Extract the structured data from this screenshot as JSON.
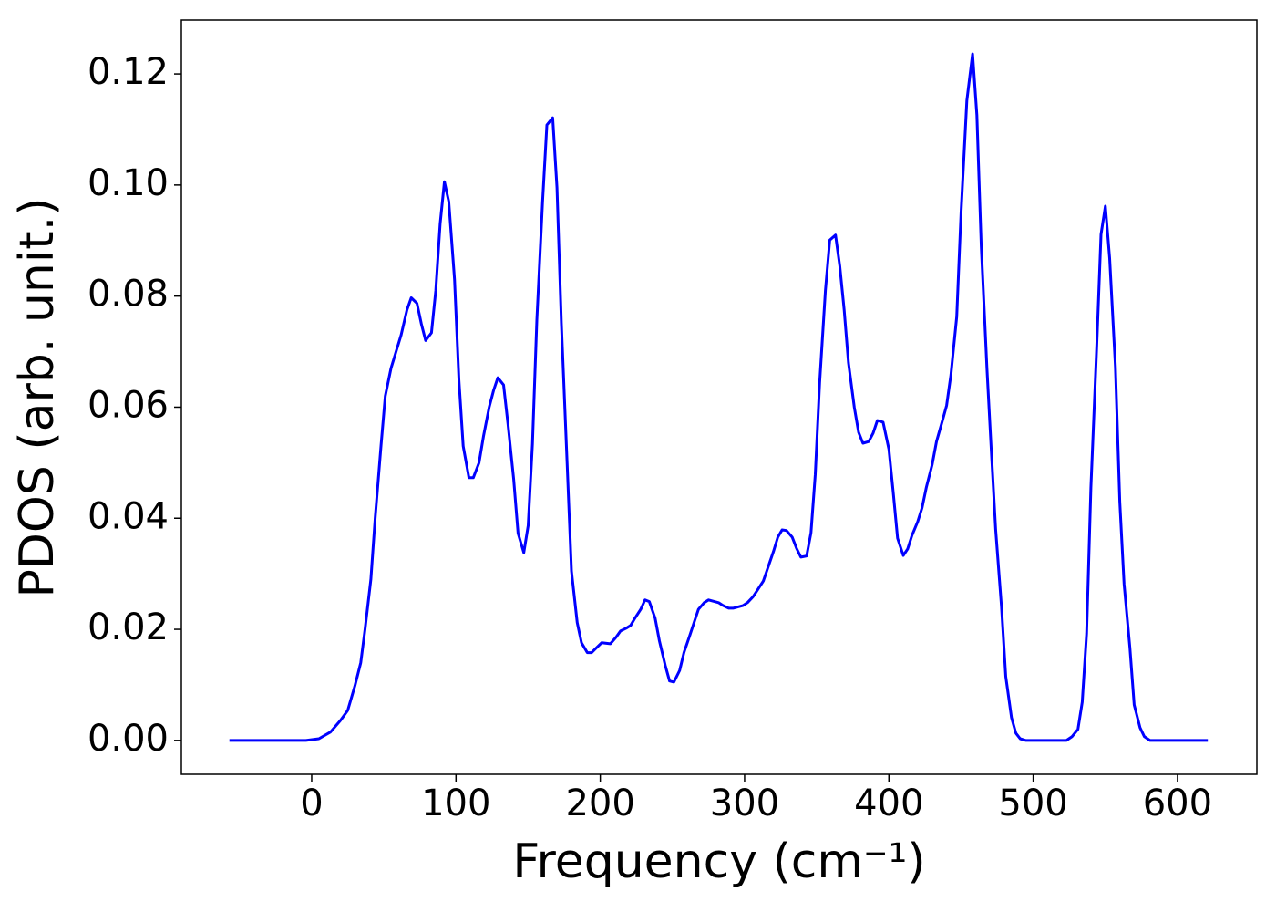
{
  "chart_data": {
    "type": "line",
    "xlabel": "Frequency (cm⁻¹)",
    "ylabel": "PDOS (arb. unit.)",
    "xlim": [
      -90.3,
      655
    ],
    "ylim": [
      -0.0061,
      0.1297
    ],
    "xticks": [
      0,
      100,
      200,
      300,
      400,
      500,
      600
    ],
    "yticks": [
      {
        "value": 0,
        "label": "0.00"
      },
      {
        "value": 0.02,
        "label": "0.02"
      },
      {
        "value": 0.04,
        "label": "0.04"
      },
      {
        "value": 0.06,
        "label": "0.06"
      },
      {
        "value": 0.08,
        "label": "0.08"
      },
      {
        "value": 0.1,
        "label": "0.10"
      },
      {
        "value": 0.12,
        "label": "0.12"
      }
    ],
    "grid": false,
    "x": [
      -57,
      -4,
      5,
      13,
      20,
      25,
      30,
      34,
      37,
      41,
      44,
      48,
      51,
      55,
      62,
      66,
      69,
      73,
      76,
      79,
      83,
      86,
      89,
      92,
      95,
      99,
      102,
      105,
      109,
      112,
      116,
      119,
      123,
      126,
      129,
      133,
      136,
      140,
      143,
      147,
      150,
      153,
      156,
      160,
      163,
      167,
      170,
      173,
      177,
      180,
      184,
      187,
      191,
      194,
      197,
      201,
      207,
      211,
      214,
      218,
      221,
      224,
      228,
      231,
      234,
      238,
      241,
      245,
      248,
      251,
      255,
      258,
      262,
      268,
      272,
      275,
      282,
      285,
      289,
      292,
      299,
      302,
      306,
      309,
      313,
      316,
      320,
      323,
      326,
      329,
      333,
      336,
      339,
      343,
      346,
      349,
      352,
      356,
      359,
      363,
      366,
      369,
      372,
      376,
      379,
      382,
      386,
      389,
      392,
      396,
      400,
      403,
      406,
      410,
      413,
      416,
      420,
      423,
      426,
      430,
      433,
      437,
      440,
      443,
      447,
      450,
      454,
      458,
      461,
      464,
      468,
      471,
      474,
      478,
      481,
      485,
      488,
      491,
      495,
      523,
      527,
      531,
      534,
      537,
      540,
      544,
      547,
      550,
      553,
      557,
      560,
      563,
      567,
      570,
      574,
      577,
      581,
      621
    ],
    "series": [
      {
        "name": "PDOS",
        "color": "#0000ff",
        "values": [
          0,
          0,
          0.0003,
          0.0015,
          0.0036,
          0.0054,
          0.0099,
          0.014,
          0.02,
          0.029,
          0.04,
          0.053,
          0.062,
          0.067,
          0.073,
          0.0775,
          0.0797,
          0.0787,
          0.075,
          0.072,
          0.0734,
          0.081,
          0.093,
          0.1006,
          0.097,
          0.083,
          0.065,
          0.053,
          0.0473,
          0.0473,
          0.05,
          0.0547,
          0.06,
          0.063,
          0.0653,
          0.064,
          0.057,
          0.047,
          0.0373,
          0.0338,
          0.0387,
          0.0534,
          0.0757,
          0.097,
          0.1108,
          0.1121,
          0.0995,
          0.0752,
          0.05,
          0.0305,
          0.0212,
          0.0176,
          0.0158,
          0.0158,
          0.0166,
          0.0176,
          0.0174,
          0.0186,
          0.0197,
          0.0202,
          0.0207,
          0.022,
          0.0236,
          0.0253,
          0.025,
          0.022,
          0.0179,
          0.0135,
          0.0107,
          0.0105,
          0.0126,
          0.0158,
          0.0189,
          0.0236,
          0.0248,
          0.0253,
          0.0248,
          0.0243,
          0.0238,
          0.0238,
          0.0243,
          0.0248,
          0.0259,
          0.0271,
          0.0287,
          0.031,
          0.034,
          0.0366,
          0.0379,
          0.0378,
          0.0366,
          0.0346,
          0.033,
          0.0332,
          0.0374,
          0.0479,
          0.0644,
          0.081,
          0.0901,
          0.091,
          0.0854,
          0.0775,
          0.068,
          0.06,
          0.0555,
          0.0535,
          0.0538,
          0.0553,
          0.0576,
          0.0573,
          0.0524,
          0.0447,
          0.0364,
          0.0333,
          0.0345,
          0.0369,
          0.0394,
          0.0419,
          0.0456,
          0.0497,
          0.0538,
          0.0575,
          0.0603,
          0.0658,
          0.0763,
          0.0949,
          0.1152,
          0.1236,
          0.1126,
          0.089,
          0.0668,
          0.052,
          0.038,
          0.0241,
          0.0115,
          0.0041,
          0.0013,
          0.0003,
          0,
          0,
          0.0007,
          0.002,
          0.0069,
          0.0192,
          0.0455,
          0.0709,
          0.0911,
          0.0962,
          0.0868,
          0.0673,
          0.043,
          0.0282,
          0.0167,
          0.0064,
          0.0023,
          0.0007,
          0,
          0
        ]
      }
    ]
  }
}
